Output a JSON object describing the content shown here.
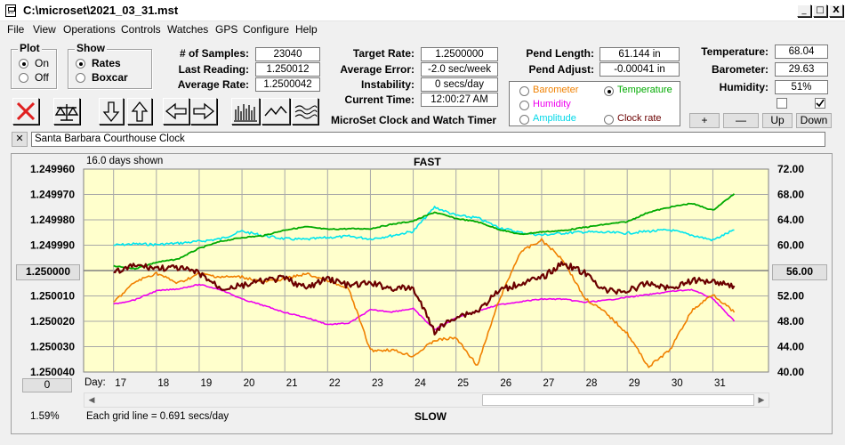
{
  "window": {
    "title": "C:\\microset\\2021_03_31.mst",
    "minimize_glyph": "_",
    "maximize_glyph": "□",
    "close_glyph": "X"
  },
  "menu": [
    "File",
    "View",
    "Operations",
    "Controls",
    "Watches",
    "GPS",
    "Configure",
    "Help"
  ],
  "plot_group": {
    "title": "Plot",
    "on_label": "On",
    "off_label": "Off",
    "selected": "On"
  },
  "show_group": {
    "title": "Show",
    "rates_label": "Rates",
    "boxcar_label": "Boxcar",
    "selected": "Rates"
  },
  "stats": {
    "samples_label": "# of Samples:",
    "samples": "23040",
    "last_reading_label": "Last Reading:",
    "last_reading": "1.250012",
    "average_rate_label": "Average Rate:",
    "average_rate": "1.2500042",
    "target_rate_label": "Target Rate:",
    "target_rate": "1.2500000",
    "average_error_label": "Average Error:",
    "average_error": "-2.0 sec/week",
    "instability_label": "Instability:",
    "instability": "0 secs/day",
    "current_time_label": "Current Time:",
    "current_time": "12:00:27 AM",
    "pend_length_label": "Pend Length:",
    "pend_length": "61.144 in",
    "pend_adjust_label": "Pend Adjust:",
    "pend_adjust": "-0.00041 in",
    "temperature_label": "Temperature:",
    "temperature": "68.04",
    "barometer_label": "Barometer:",
    "barometer": "29.63",
    "humidity_label": "Humidity:",
    "humidity": "51%"
  },
  "app_name": "MicroSet Clock and Watch Timer",
  "series_selector": {
    "barometer": "Barometer",
    "temperature": "Temperature",
    "humidity": "Humidity",
    "amplitude": "Amplitude",
    "clock_rate": "Clock rate",
    "selected": "Temperature"
  },
  "scale_buttons": {
    "plus": "+",
    "minus": "—",
    "up": "Up",
    "down": "Down"
  },
  "toolbar_icons": [
    "close-x-icon",
    "balance-scale-icon",
    "arrow-down-icon",
    "arrow-up-icon",
    "arrow-left-icon",
    "arrow-right-icon",
    "bar-graph-icon",
    "line-graph-icon",
    "wave-graph-icon"
  ],
  "clock_name": "Santa Barbara Courthouse Clock",
  "clear_button": "✕",
  "chart_info": {
    "days_shown": "16.0 days shown",
    "fast": "FAST",
    "slow": "SLOW",
    "grid_note": "Each grid line = 0.691 secs/day",
    "day_label": "Day:",
    "left_button": "1.250000",
    "right_button": "56.00",
    "bottom_button": "0",
    "percent": "1.59%"
  },
  "colors": {
    "plot_bg": "#ffffcc",
    "grid": "#a8a8a8",
    "clock_rate": "#6b0000",
    "temperature": "#00aa00",
    "amplitude": "#00e5ee",
    "humidity": "#ee00ee",
    "barometer": "#f08000",
    "reference": "#808080"
  },
  "chart_data": {
    "type": "line",
    "x_label": "Day",
    "x": [
      17,
      17.5,
      18,
      18.5,
      19,
      19.5,
      20,
      20.5,
      21,
      21.5,
      22,
      22.5,
      23,
      23.5,
      24,
      24.5,
      25,
      25.5,
      26,
      26.5,
      27,
      27.5,
      28,
      28.5,
      29,
      29.5,
      30,
      30.5,
      31,
      31.5
    ],
    "xlim": [
      16.3,
      32.3
    ],
    "x_ticks": [
      "17",
      "18",
      "19",
      "20",
      "21",
      "22",
      "23",
      "24",
      "25",
      "26",
      "27",
      "28",
      "29",
      "30",
      "31"
    ],
    "left_axis": {
      "ticks": [
        "1.249960",
        "1.249970",
        "1.249980",
        "1.249990",
        "1.250000",
        "1.250010",
        "1.250020",
        "1.250030",
        "1.250040"
      ],
      "ylim": [
        1.24996,
        1.25004
      ],
      "inverted": true
    },
    "right_axis": {
      "ticks": [
        "72.00",
        "68.00",
        "64.00",
        "60.00",
        "56.00",
        "52.00",
        "48.00",
        "44.00",
        "40.00"
      ],
      "ylim": [
        40,
        72
      ]
    },
    "series": [
      {
        "name": "Clock rate",
        "axis": "left",
        "values": [
          1.250001,
          1.249998,
          1.249999,
          1.249999,
          1.250001,
          1.250007,
          1.250006,
          1.250004,
          1.250003,
          1.250007,
          1.250003,
          1.250006,
          1.250005,
          1.250007,
          1.250007,
          1.250024,
          1.250018,
          1.250016,
          1.250008,
          1.250005,
          1.250003,
          1.249997,
          1.250001,
          1.250008,
          1.250008,
          1.250005,
          1.250007,
          1.250004,
          1.250004,
          1.250006
        ]
      },
      {
        "name": "Temperature",
        "axis": "right",
        "values": [
          56.7,
          56.3,
          57.3,
          57.8,
          59.5,
          60.6,
          61.2,
          61.5,
          62.4,
          62.9,
          62.5,
          62.6,
          62.6,
          63.3,
          63.8,
          65.2,
          64.2,
          63.7,
          62.5,
          61.7,
          62.1,
          62.3,
          62.8,
          63.3,
          63.7,
          65.2,
          66.0,
          66.6,
          65.5,
          68.1
        ]
      },
      {
        "name": "Amplitude",
        "axis": "right",
        "values": [
          60.0,
          60.2,
          60.1,
          60.3,
          60.6,
          61.0,
          62.2,
          61.5,
          61.0,
          60.9,
          61.2,
          61.4,
          61.0,
          61.5,
          62.2,
          66.0,
          64.7,
          64.3,
          62.8,
          62.0,
          61.6,
          61.9,
          62.1,
          62.0,
          61.9,
          62.2,
          62.4,
          61.6,
          60.8,
          62.4
        ]
      },
      {
        "name": "Humidity",
        "axis": "right",
        "values": [
          50.7,
          51.4,
          52.8,
          53.1,
          53.8,
          53.0,
          51.5,
          50.5,
          49.4,
          48.6,
          47.5,
          47.7,
          49.8,
          49.5,
          50.0,
          46.7,
          48.6,
          49.6,
          50.6,
          51.1,
          51.5,
          51.5,
          51.0,
          51.3,
          51.8,
          52.2,
          52.7,
          53.0,
          51.6,
          48.0
        ]
      },
      {
        "name": "Barometer",
        "axis": "right",
        "values": [
          51.0,
          54.2,
          55.6,
          54.0,
          55.5,
          55.0,
          55.0,
          54.2,
          54.7,
          55.5,
          54.4,
          53.0,
          43.4,
          43.5,
          42.5,
          45.0,
          45.4,
          41.0,
          51.2,
          58.9,
          60.8,
          57.7,
          51.7,
          49.3,
          46.1,
          40.8,
          43.5,
          49.6,
          52.3,
          49.4
        ]
      }
    ]
  }
}
